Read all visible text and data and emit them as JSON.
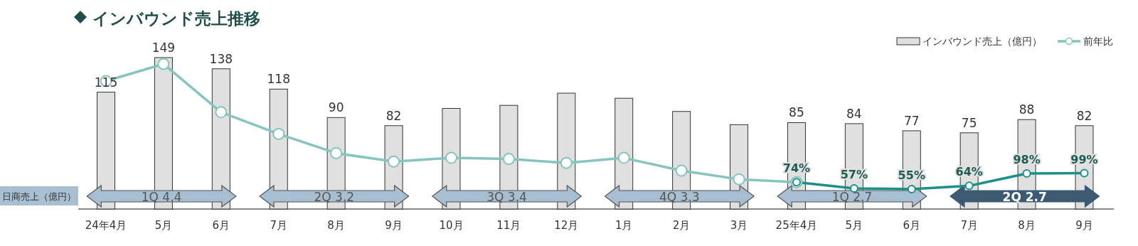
{
  "chart_data": {
    "type": "bar",
    "title": "インバウンド売上推移",
    "categories": [
      "24年4月",
      "5月",
      "6月",
      "7月",
      "8月",
      "9月",
      "10月",
      "11月",
      "12月",
      "1月",
      "2月",
      "3月",
      "25年4月",
      "5月",
      "6月",
      "7月",
      "8月",
      "9月"
    ],
    "series": [
      {
        "name": "インバウンド売上（億円）",
        "color": "#e0e0e0",
        "values": [
          115,
          149,
          138,
          118,
          90,
          82,
          99,
          102,
          114,
          109,
          96,
          83,
          85,
          84,
          77,
          75,
          88,
          82
        ],
        "value_labels": [
          "115",
          "149",
          "138",
          "118",
          "90",
          "82",
          null,
          null,
          null,
          null,
          null,
          null,
          "85",
          "84",
          "77",
          "75",
          "88",
          "82"
        ]
      },
      {
        "name": "前年比",
        "type": "line",
        "axis": "y2",
        "color": "#86c5bf",
        "marker": "circle",
        "values": [
          353,
          400,
          267,
          207,
          154,
          131,
          141,
          138,
          127,
          141,
          106,
          82,
          74,
          null,
          null,
          null,
          null,
          null
        ]
      },
      {
        "type": "line",
        "axis": "y2",
        "color": "#1a9188",
        "marker": "circle",
        "values": [
          null,
          null,
          null,
          null,
          null,
          null,
          null,
          null,
          null,
          null,
          null,
          null,
          74,
          57,
          55,
          64,
          98,
          99
        ],
        "value_labels": [
          null,
          null,
          null,
          null,
          null,
          null,
          null,
          null,
          null,
          null,
          null,
          null,
          "74%",
          "57%",
          "55%",
          "64%",
          "98%",
          "99%"
        ]
      }
    ],
    "tick_labels": "x",
    "legend": "top right",
    "annotations": [
      "日商売上（億円）",
      "1Q 4.4",
      "2Q 3.2",
      "3Q 3.4",
      "4Q 3.3",
      "1Q 2.7",
      "2Q 2.7"
    ]
  }
}
